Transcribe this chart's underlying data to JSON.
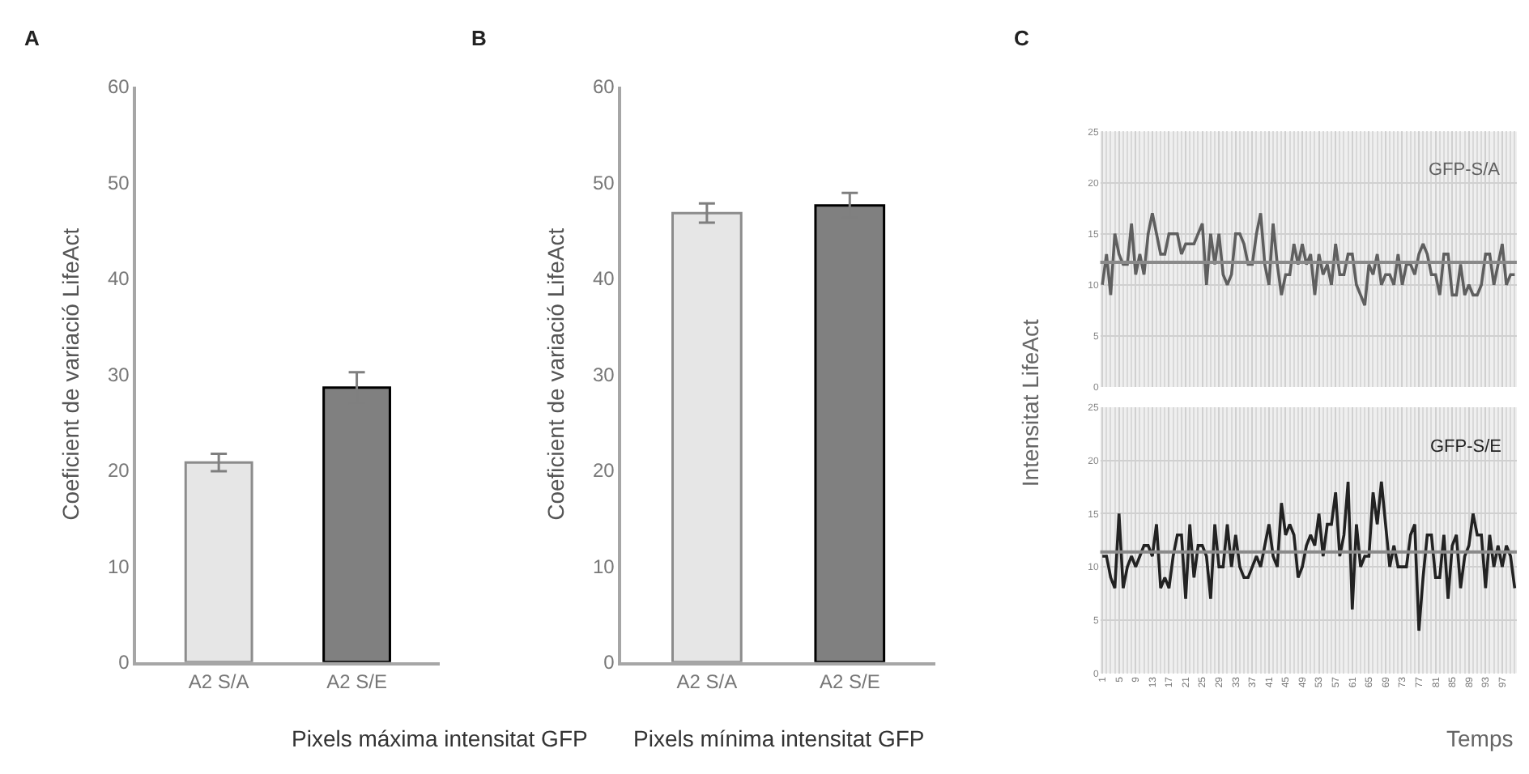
{
  "chart_data": [
    {
      "type": "bar",
      "title": "A",
      "categories": [
        "A2 S/A",
        "A2 S/E"
      ],
      "colors": [
        "#e6e6e6",
        "#808080"
      ],
      "values": [
        20.8,
        28.6
      ],
      "errors": [
        0.9,
        1.6
      ],
      "ylim": [
        0,
        60
      ],
      "yticks": [
        0,
        10,
        20,
        30,
        40,
        50,
        60
      ],
      "ylabel": "Coeficient de variació LifeAct",
      "xlabel": "Pixels máxima intensitat GFP",
      "grid": false
    },
    {
      "type": "bar",
      "title": "B",
      "categories": [
        "A2 S/A",
        "A2 S/E"
      ],
      "colors": [
        "#e6e6e6",
        "#808080"
      ],
      "values": [
        46.8,
        47.6
      ],
      "errors": [
        1.0,
        1.3
      ],
      "ylim": [
        0,
        60
      ],
      "yticks": [
        0,
        10,
        20,
        30,
        40,
        50,
        60
      ],
      "ylabel": "Coeficient de variació LifeAct",
      "xlabel": "Pixels mínima intensitat GFP",
      "grid": false
    },
    {
      "type": "line",
      "title": "C",
      "ylabel": "Intensitat LifeAct",
      "x": [
        1,
        2,
        3,
        4,
        5,
        6,
        7,
        8,
        9,
        10,
        11,
        12,
        13,
        14,
        15,
        16,
        17,
        18,
        19,
        20,
        21,
        22,
        23,
        24,
        25,
        26,
        27,
        28,
        29,
        30,
        31,
        32,
        33,
        34,
        35,
        36,
        37,
        38,
        39,
        40,
        41,
        42,
        43,
        44,
        45,
        46,
        47,
        48,
        49,
        50,
        51,
        52,
        53,
        54,
        55,
        56,
        57,
        58,
        59,
        60,
        61,
        62,
        63,
        64,
        65,
        66,
        67,
        68,
        69,
        70,
        71,
        72,
        73,
        74,
        75,
        76,
        77,
        78,
        79,
        80,
        81,
        82,
        83,
        84,
        85,
        86,
        87,
        88,
        89,
        90,
        91,
        92,
        93,
        94,
        95,
        96,
        97,
        98,
        99,
        100
      ],
      "xlim": [
        1,
        100
      ],
      "xticks": [
        1,
        5,
        9,
        13,
        17,
        21,
        25,
        29,
        33,
        37,
        41,
        45,
        49,
        53,
        57,
        61,
        65,
        69,
        73,
        77,
        81,
        85,
        89,
        93,
        97
      ],
      "ylim": [
        0,
        25
      ],
      "yticks": [
        0,
        5,
        10,
        15,
        20,
        25
      ],
      "tick_labels": "y",
      "grid": true,
      "series": [
        {
          "name": "GFP-S/A",
          "color": "#5f5f5f",
          "values": [
            10,
            13,
            9,
            15,
            13,
            12,
            12,
            16,
            11,
            13,
            11,
            15,
            17,
            15,
            13,
            13,
            15,
            15,
            15,
            13,
            14,
            14,
            14,
            15,
            16,
            10,
            15,
            12,
            15,
            11,
            10,
            11,
            15,
            15,
            14,
            12,
            12,
            15,
            17,
            12,
            10,
            16,
            12,
            9,
            11,
            11,
            14,
            12,
            14,
            12,
            13,
            9,
            13,
            11,
            12,
            10,
            14,
            11,
            11,
            13,
            13,
            10,
            9,
            8,
            12,
            11,
            13,
            10,
            11,
            11,
            10,
            13,
            10,
            12,
            12,
            11,
            13,
            14,
            13,
            11,
            11,
            9,
            13,
            13,
            9,
            9,
            12,
            9,
            10,
            9,
            9,
            10,
            13,
            13,
            10,
            12,
            14,
            10,
            11,
            11
          ]
        }
      ],
      "ref_lines": [
        {
          "axis": "y",
          "value": 12.2,
          "color": "#8a8a8a"
        }
      ]
    },
    {
      "type": "line",
      "xlabel": "Temps",
      "x": [
        1,
        2,
        3,
        4,
        5,
        6,
        7,
        8,
        9,
        10,
        11,
        12,
        13,
        14,
        15,
        16,
        17,
        18,
        19,
        20,
        21,
        22,
        23,
        24,
        25,
        26,
        27,
        28,
        29,
        30,
        31,
        32,
        33,
        34,
        35,
        36,
        37,
        38,
        39,
        40,
        41,
        42,
        43,
        44,
        45,
        46,
        47,
        48,
        49,
        50,
        51,
        52,
        53,
        54,
        55,
        56,
        57,
        58,
        59,
        60,
        61,
        62,
        63,
        64,
        65,
        66,
        67,
        68,
        69,
        70,
        71,
        72,
        73,
        74,
        75,
        76,
        77,
        78,
        79,
        80,
        81,
        82,
        83,
        84,
        85,
        86,
        87,
        88,
        89,
        90,
        91,
        92,
        93,
        94,
        95,
        96,
        97,
        98,
        99,
        100
      ],
      "xlim": [
        1,
        100
      ],
      "xticks": [
        1,
        5,
        9,
        13,
        17,
        21,
        25,
        29,
        33,
        37,
        41,
        45,
        49,
        53,
        57,
        61,
        65,
        69,
        73,
        77,
        81,
        85,
        89,
        93,
        97
      ],
      "ylim": [
        0,
        25
      ],
      "yticks": [
        0,
        5,
        10,
        15,
        20,
        25
      ],
      "grid": true,
      "series": [
        {
          "name": "GFP-S/E",
          "color": "#222222",
          "values": [
            11,
            11,
            9,
            8,
            15,
            8,
            10,
            11,
            10,
            11,
            12,
            12,
            11,
            14,
            8,
            9,
            8,
            11,
            13,
            13,
            7,
            14,
            9,
            12,
            12,
            11,
            7,
            14,
            10,
            10,
            14,
            10,
            13,
            10,
            9,
            9,
            10,
            11,
            10,
            12,
            14,
            11,
            10,
            16,
            13,
            14,
            13,
            9,
            10,
            12,
            13,
            12,
            15,
            11,
            14,
            14,
            17,
            11,
            13,
            18,
            6,
            14,
            10,
            11,
            11,
            17,
            14,
            18,
            14,
            10,
            12,
            10,
            10,
            10,
            13,
            14,
            4,
            9,
            13,
            13,
            9,
            9,
            13,
            7,
            12,
            13,
            8,
            11,
            12,
            15,
            13,
            13,
            8,
            13,
            10,
            12,
            10,
            12,
            11,
            8
          ]
        }
      ],
      "ref_lines": [
        {
          "axis": "y",
          "value": 11.4,
          "color": "#8a8a8a"
        }
      ]
    }
  ]
}
